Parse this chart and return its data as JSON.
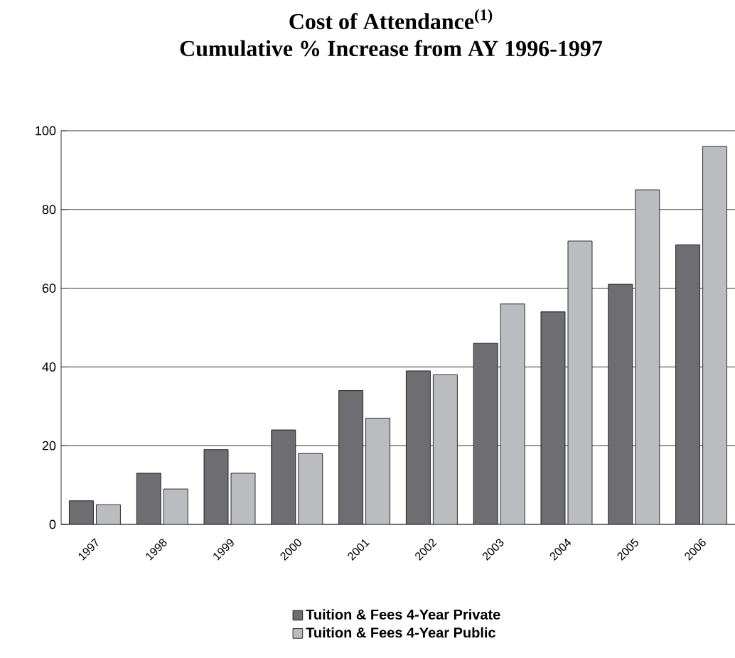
{
  "chart_data": {
    "type": "bar",
    "title": "Cost of Attendance$^{(1)}$",
    "subtitle": "Cumulative % Increase from AY 1996-1997",
    "categories": [
      "1997",
      "1998",
      "1999",
      "2000",
      "2001",
      "2002",
      "2003",
      "2004",
      "2005",
      "2006"
    ],
    "series": [
      {
        "name": "Tuition & Fees 4-Year Private",
        "color": "#6e6e72",
        "values": [
          6,
          13,
          19,
          24,
          34,
          39,
          46,
          54,
          61,
          71
        ]
      },
      {
        "name": "Tuition & Fees 4-Year Public",
        "color": "#bbbcc0",
        "values": [
          5,
          9,
          13,
          18,
          27,
          38,
          56,
          72,
          85,
          96
        ]
      }
    ],
    "ylim": [
      0,
      100
    ],
    "yticks": [
      0,
      20,
      40,
      60,
      80,
      100
    ],
    "grid": "y",
    "legend": "bottom"
  }
}
